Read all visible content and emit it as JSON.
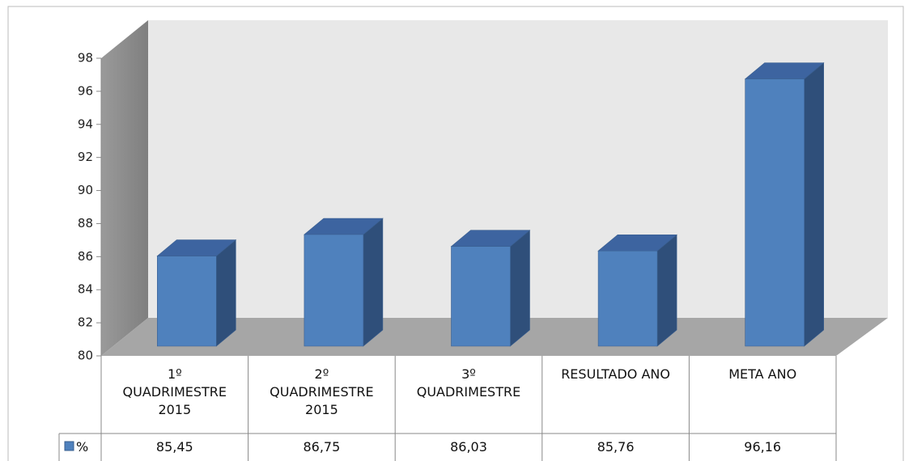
{
  "chart_data": {
    "type": "bar3d",
    "categories": [
      "1º QUADRIMESTRE 2015",
      "2º QUADRIMESTRE 2015",
      "3º QUADRIMESTRE",
      "RESULTADO ANO",
      "META ANO"
    ],
    "series": [
      {
        "name": "%",
        "color": "#4f81bd",
        "values": [
          85.45,
          86.75,
          86.03,
          85.76,
          96.16
        ],
        "value_labels": [
          "85,45",
          "86,75",
          "86,03",
          "85,76",
          "96,16"
        ]
      }
    ],
    "ylim": [
      80,
      98
    ],
    "yticks": [
      80,
      82,
      84,
      86,
      88,
      90,
      92,
      94,
      96,
      98
    ],
    "legend": "table"
  }
}
